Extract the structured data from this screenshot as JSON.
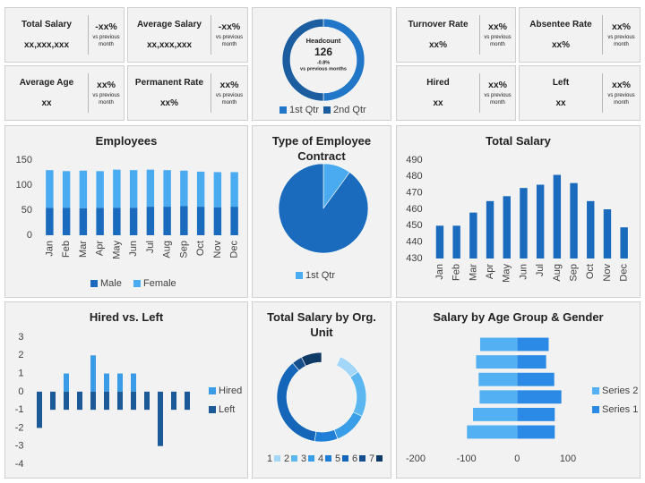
{
  "kpis": [
    {
      "label": "Total Salary",
      "value": "xx,xxx,xxx",
      "change": "-xx%",
      "note": "vs previous month"
    },
    {
      "label": "Average Salary",
      "value": "xx,xxx,xxx",
      "change": "-xx%",
      "note": "vs previous month"
    },
    {
      "label": "Average Age",
      "value": "xx",
      "change": "xx%",
      "note": "vs previous month"
    },
    {
      "label": "Permanent Rate",
      "value": "xx%",
      "change": "xx%",
      "note": "vs previous month"
    },
    {
      "label": "Turnover Rate",
      "value": "xx%",
      "change": "xx%",
      "note": "vs previous month"
    },
    {
      "label": "Absentee Rate",
      "value": "xx%",
      "change": "xx%",
      "note": "vs previous month"
    },
    {
      "label": "Hired",
      "value": "xx",
      "change": "xx%",
      "note": "vs previous month"
    },
    {
      "label": "Left",
      "value": "xx",
      "change": "xx%",
      "note": "vs previous month"
    }
  ],
  "chart_data": [
    {
      "type": "donut",
      "center_label": "Headcount",
      "center_value": 126,
      "center_change": "-0.8%",
      "center_note": "vs previous months",
      "categories": [
        "1st Qtr",
        "2nd Qtr"
      ],
      "values": [
        50,
        50
      ],
      "colors": [
        "#2176c7",
        "#1b5d9f"
      ],
      "legend": "bottom"
    },
    {
      "type": "bar",
      "title": "Employees",
      "stacked": true,
      "categories": [
        "Jan",
        "Feb",
        "Mar",
        "Apr",
        "May",
        "Jun",
        "Jul",
        "Aug",
        "Sep",
        "Oct",
        "Nov",
        "Dec"
      ],
      "series": [
        {
          "name": "Male",
          "color": "#1a6bbd",
          "values": [
            55,
            55,
            54,
            55,
            55,
            55,
            57,
            57,
            58,
            57,
            56,
            57
          ]
        },
        {
          "name": "Female",
          "color": "#4aabf0",
          "values": [
            75,
            73,
            75,
            73,
            76,
            75,
            74,
            73,
            71,
            70,
            70,
            69
          ]
        }
      ],
      "ylim": [
        0,
        150
      ],
      "yticks": [
        0,
        50,
        100,
        150
      ],
      "legend": "bottom"
    },
    {
      "type": "pie",
      "title": "Type of Employee Contract",
      "categories": [
        "1st Qtr",
        null
      ],
      "values": [
        10,
        90
      ],
      "colors": [
        "#4aabf0",
        "#1a6bbd"
      ],
      "legend": "bottom"
    },
    {
      "type": "bar",
      "title": "Total Salary",
      "categories": [
        "Jan",
        "Feb",
        "Mar",
        "Apr",
        "May",
        "Jun",
        "Jul",
        "Aug",
        "Sep",
        "Oct",
        "Nov",
        "Dec"
      ],
      "values": [
        450,
        450,
        458,
        465,
        468,
        473,
        475,
        481,
        476,
        465,
        460,
        449
      ],
      "color": "#1a6bbd",
      "ylim": [
        430,
        490
      ],
      "yticks": [
        430,
        440,
        450,
        460,
        470,
        480,
        490
      ]
    },
    {
      "type": "bar",
      "title": "Hired vs. Left",
      "stacked": true,
      "series": [
        {
          "name": "Hired",
          "color": "#3a9be6",
          "values": [
            0,
            0,
            1,
            0,
            2,
            1,
            1,
            1,
            0,
            0,
            0,
            0
          ]
        },
        {
          "name": "Left",
          "color": "#1b5a96",
          "values": [
            -2,
            -1,
            -1,
            -1,
            -1,
            -1,
            -1,
            -1,
            -1,
            -3,
            -1,
            -1
          ]
        }
      ],
      "ylim": [
        -4,
        3
      ],
      "yticks": [
        -4,
        -3,
        -2,
        -1,
        0,
        1,
        2,
        3
      ],
      "legend": "right"
    },
    {
      "type": "donut",
      "title": "Total Salary by Org. Unit",
      "categories": [
        "1",
        "2",
        "3",
        "4",
        "5",
        "6",
        "7"
      ],
      "values": [
        9,
        18,
        13,
        9,
        39,
        4,
        8
      ],
      "colors": [
        "#a4d6f8",
        "#5cb7f1",
        "#3a9de8",
        "#1f7fd6",
        "#1565b8",
        "#174f8c",
        "#0f3a66"
      ],
      "legend": "bottom"
    },
    {
      "type": "hbar",
      "title": "Salary by Age Group & Gender",
      "series": [
        {
          "name": "Series 1",
          "color": "#2a8ae6",
          "values": [
            62,
            57,
            73,
            87,
            74,
            74
          ]
        },
        {
          "name": "Series 2",
          "color": "#53b0f2",
          "values": [
            -73,
            -81,
            -76,
            -74,
            -87,
            -99
          ]
        }
      ],
      "xlim": [
        -200,
        100
      ],
      "xticks": [
        -200,
        -100,
        0,
        100
      ],
      "legend": "right"
    }
  ]
}
